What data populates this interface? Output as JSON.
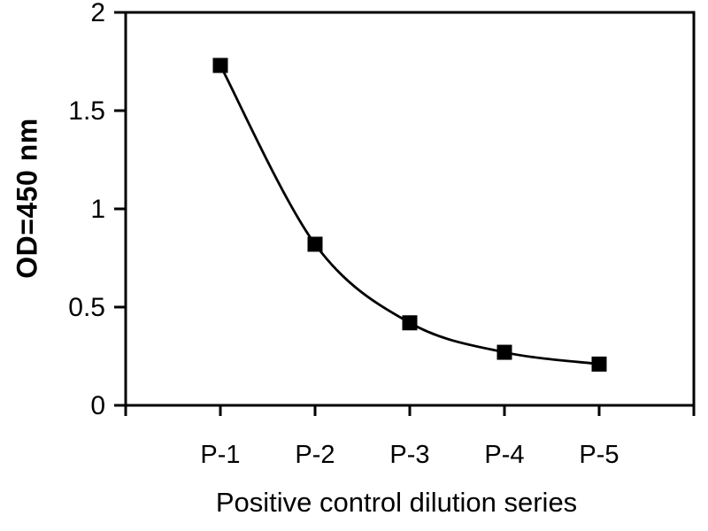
{
  "chart_data": {
    "type": "line",
    "categories": [
      "P-1",
      "P-2",
      "P-3",
      "P-4",
      "P-5"
    ],
    "values": [
      1.73,
      0.82,
      0.42,
      0.27,
      0.21
    ],
    "xlabel": "Positive control dilution series",
    "ylabel": "OD=450 nm",
    "ylim": [
      0,
      2
    ],
    "ytick_values": [
      0,
      0.5,
      1,
      1.5,
      2
    ],
    "ytick_labels": [
      "0",
      "0.5",
      "1",
      "1.5",
      "2"
    ],
    "grid": false,
    "legend": false,
    "smooth": true,
    "marker": "filled-square",
    "line_color": "#000000",
    "marker_color": "#000000",
    "axis_color": "#000000",
    "background": "#ffffff",
    "tick_position": "outside"
  }
}
